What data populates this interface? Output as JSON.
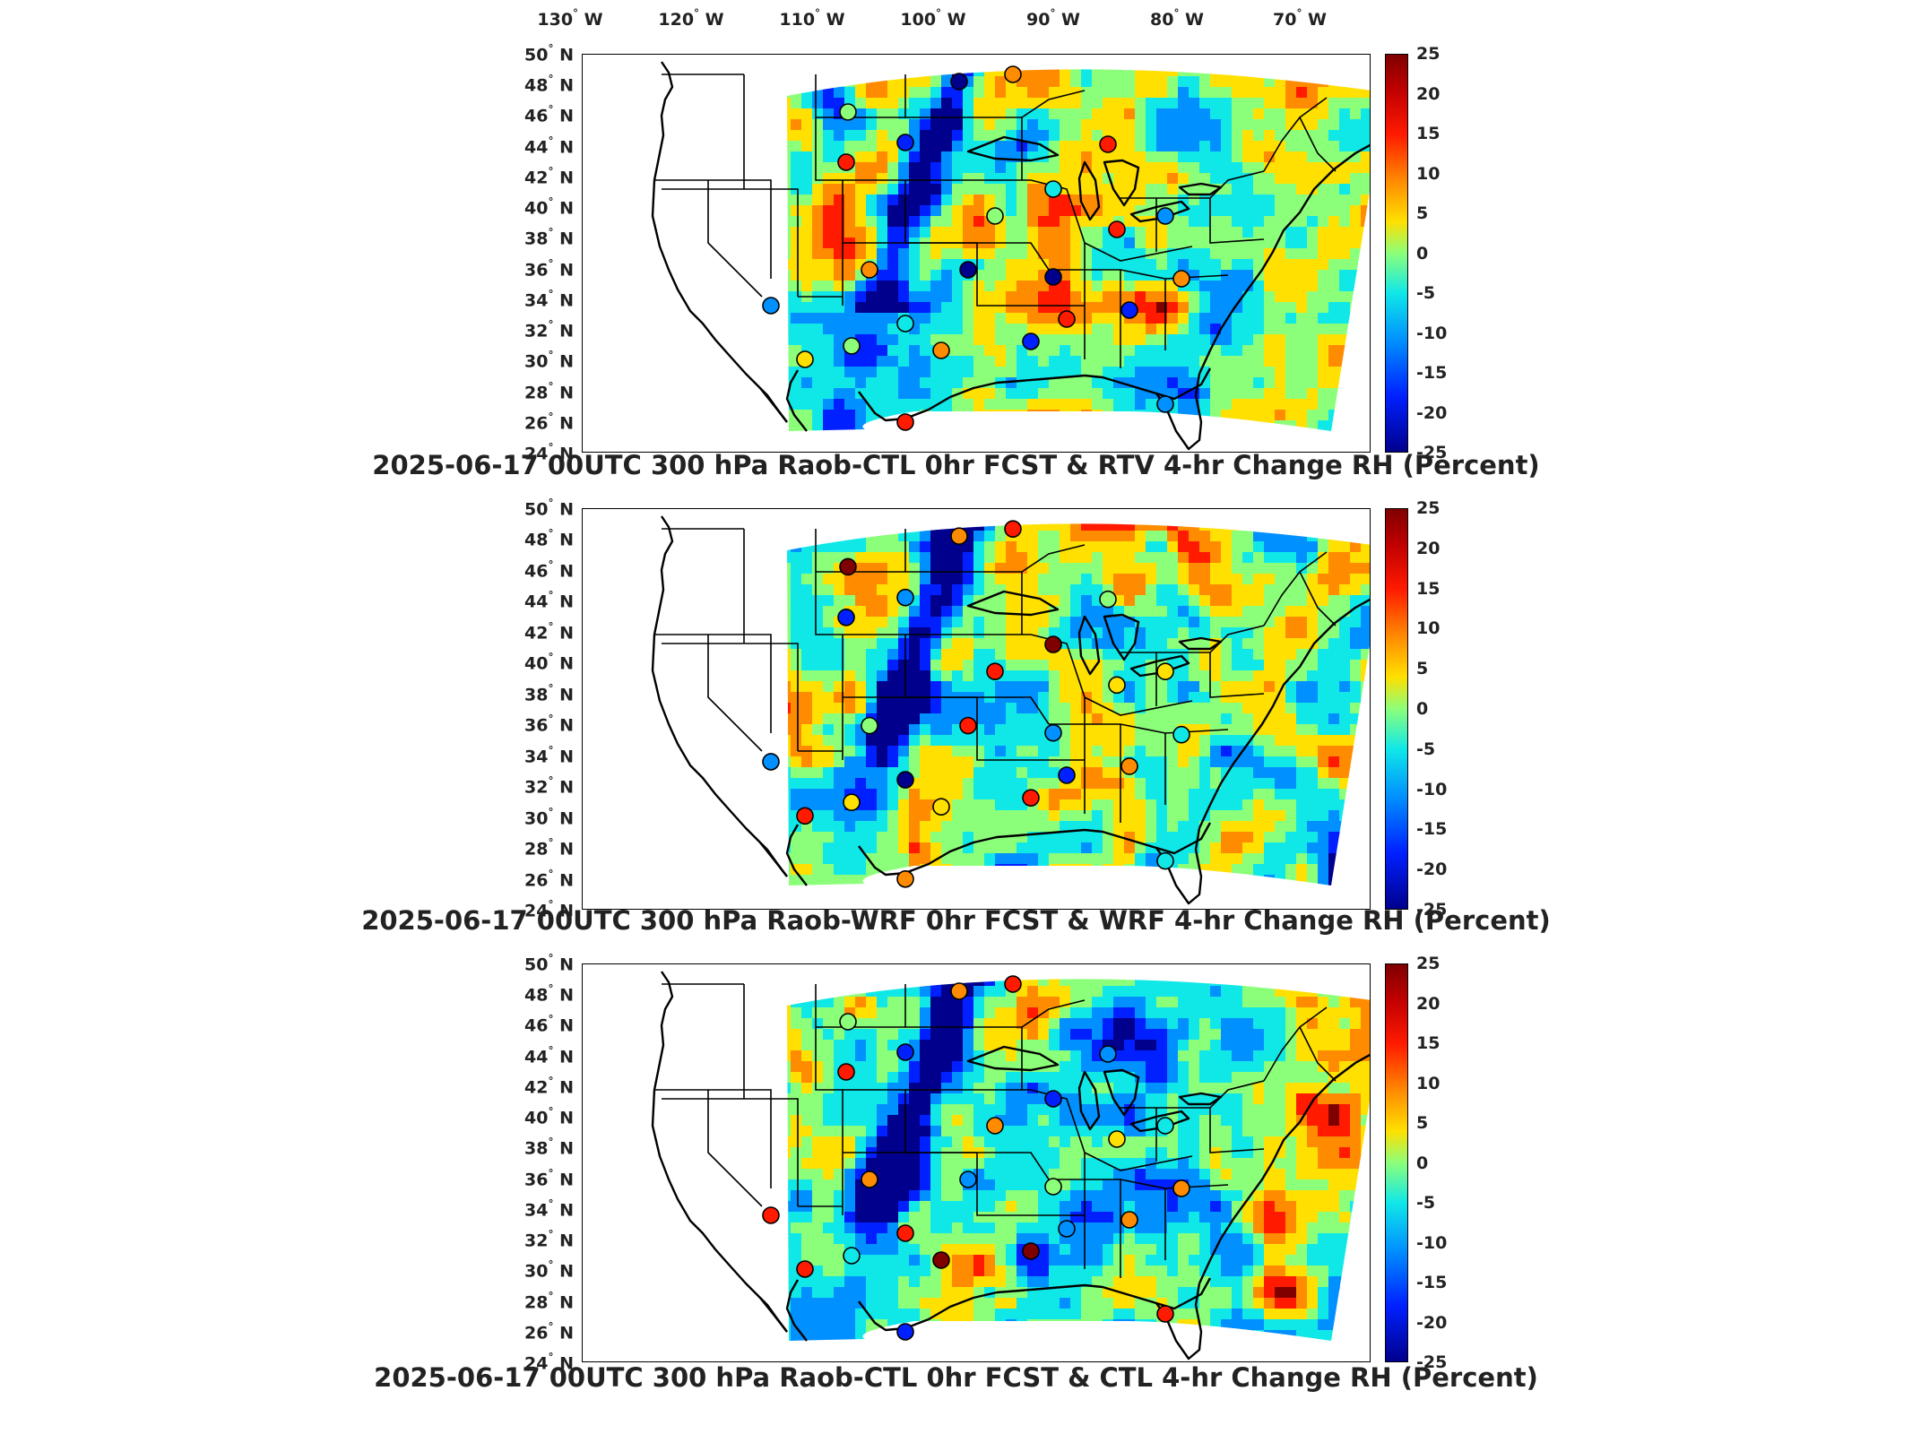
{
  "lon_labels": [
    {
      "deg": "130",
      "dir": "W"
    },
    {
      "deg": "120",
      "dir": "W"
    },
    {
      "deg": "110",
      "dir": "W"
    },
    {
      "deg": "100",
      "dir": "W"
    },
    {
      "deg": "90",
      "dir": "W"
    },
    {
      "deg": "80",
      "dir": "W"
    },
    {
      "deg": "70",
      "dir": "W"
    }
  ],
  "lat_labels": [
    {
      "deg": "50",
      "dir": "N"
    },
    {
      "deg": "48",
      "dir": "N"
    },
    {
      "deg": "46",
      "dir": "N"
    },
    {
      "deg": "44",
      "dir": "N"
    },
    {
      "deg": "42",
      "dir": "N"
    },
    {
      "deg": "40",
      "dir": "N"
    },
    {
      "deg": "38",
      "dir": "N"
    },
    {
      "deg": "36",
      "dir": "N"
    },
    {
      "deg": "34",
      "dir": "N"
    },
    {
      "deg": "32",
      "dir": "N"
    },
    {
      "deg": "30",
      "dir": "N"
    },
    {
      "deg": "28",
      "dir": "N"
    },
    {
      "deg": "26",
      "dir": "N"
    },
    {
      "deg": "24",
      "dir": "N"
    }
  ],
  "colorbar": {
    "ticks": [
      "25",
      "20",
      "15",
      "10",
      "5",
      "0",
      "-5",
      "-10",
      "-15",
      "-20",
      "-25"
    ],
    "min": -25,
    "max": 25,
    "colors": [
      "#800000",
      "#ff1a00",
      "#ff8c00",
      "#ffe000",
      "#8cff7a",
      "#10e8e8",
      "#0090ff",
      "#0020ff",
      "#00008c"
    ]
  },
  "panels": [
    {
      "title": "2025-06-17 00UTC 300 hPa Raob-CTL 0hr FCST & RTV 4-hr Change RH (Percent)"
    },
    {
      "title": "2025-06-17 00UTC 300 hPa Raob-WRF 0hr FCST & WRF 4-hr Change RH (Percent)"
    },
    {
      "title": "2025-06-17 00UTC 300 hPa Raob-CTL 0hr FCST & CTL 4-hr Change RH (Percent)"
    }
  ]
}
